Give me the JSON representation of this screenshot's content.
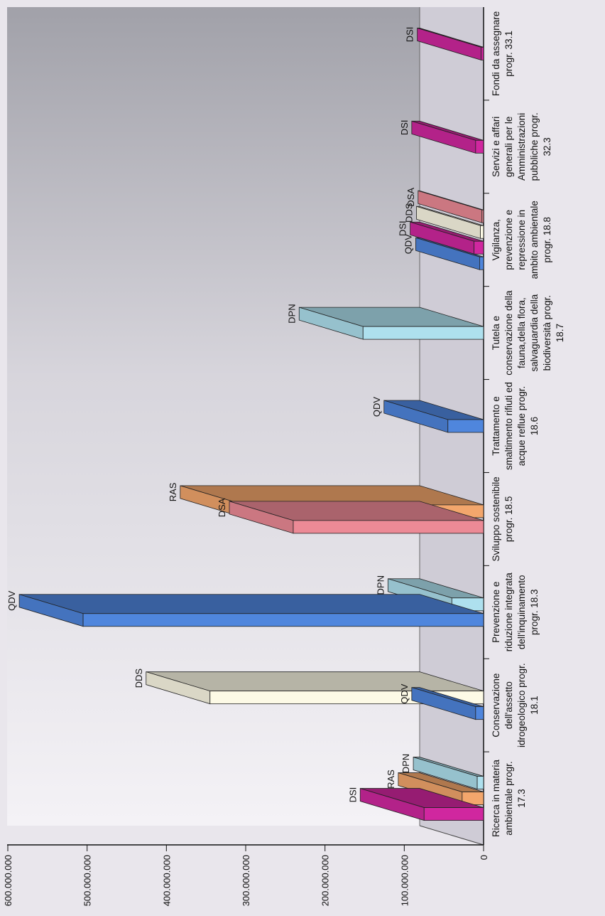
{
  "chart_data": {
    "type": "bar",
    "orientation": "rotated-90",
    "style": "3d",
    "ylim": [
      0,
      600000000
    ],
    "yticks": [
      0,
      100000000,
      200000000,
      300000000,
      400000000,
      500000000,
      600000000
    ],
    "ytick_labels": [
      "0",
      "100.000.000",
      "200.000.000",
      "300.000.000",
      "400.000.000",
      "500.000.000",
      "600.000.000"
    ],
    "grid": false,
    "legend": "none",
    "categories": [
      {
        "label_lines": [
          "Ricerca in materia",
          "ambientale   progr.",
          "17.3"
        ],
        "bars": [
          {
            "label": "DSI",
            "value": 75000000,
            "color": "#d0279f"
          },
          {
            "label": "RAS",
            "value": 27000000,
            "color": "#f3a66c"
          },
          {
            "label": "DPN",
            "value": 8000000,
            "color": "#aee0ee"
          }
        ]
      },
      {
        "label_lines": [
          "Conservazione",
          "dell'assetto",
          "idrogeologico  progr.",
          "18.1"
        ],
        "bars": [
          {
            "label": "QDV",
            "value": 10000000,
            "color": "#4f86dd"
          },
          {
            "label": "DDS",
            "value": 345000000,
            "color": "#fdfae6"
          }
        ]
      },
      {
        "label_lines": [
          "Prevenzione e",
          "riduzione integrata",
          "dell'inquinamento",
          "progr. 18.3"
        ],
        "bars": [
          {
            "label": "QDV",
            "value": 505000000,
            "color": "#4f86dd"
          },
          {
            "label": "DPN",
            "value": 40000000,
            "color": "#aee0ee"
          }
        ]
      },
      {
        "label_lines": [
          "Sviluppo   sostenibile",
          "progr. 18.5"
        ],
        "bars": [
          {
            "label": "DSA",
            "value": 240000000,
            "color": "#ec8a96"
          },
          {
            "label": "RAS",
            "value": 302000000,
            "color": "#f3a66c"
          }
        ]
      },
      {
        "label_lines": [
          "Trattamento e",
          "smaltimento rifiuti ed",
          "acque reflue progr.",
          "18.6"
        ],
        "bars": [
          {
            "label": "QDV",
            "value": 45000000,
            "color": "#4f86dd"
          }
        ]
      },
      {
        "label_lines": [
          "Tutela e",
          "conservazione della",
          "fauna,della flora,",
          "salvaguardia della",
          "biodiversità progr.",
          "18.7"
        ],
        "bars": [
          {
            "label": "DPN",
            "value": 152000000,
            "color": "#aee0ee"
          }
        ]
      },
      {
        "label_lines": [
          "Vigilanza,",
          "prevenzione e",
          "repressione in",
          "ambito ambientale",
          "progr. 18.8"
        ],
        "bars": [
          {
            "label": "QDV",
            "value": 5000000,
            "color": "#4f86dd"
          },
          {
            "label": "DSI",
            "value": 12000000,
            "color": "#d0279f"
          },
          {
            "label": "DDS",
            "value": 4000000,
            "color": "#fdfae6"
          },
          {
            "label": "DSA",
            "value": 2000000,
            "color": "#ec8a96"
          }
        ]
      },
      {
        "label_lines": [
          "Servizi e affari",
          "generali per le",
          "Amministrazioni",
          "pubbliche      progr.",
          "32.3"
        ],
        "bars": [
          {
            "label": "DSI",
            "value": 10000000,
            "color": "#d0279f"
          }
        ]
      },
      {
        "label_lines": [
          "Fondi da assegnare",
          "progr. 33.1"
        ],
        "bars": [
          {
            "label": "DSI",
            "value": 3000000,
            "color": "#d0279f"
          }
        ]
      }
    ]
  }
}
